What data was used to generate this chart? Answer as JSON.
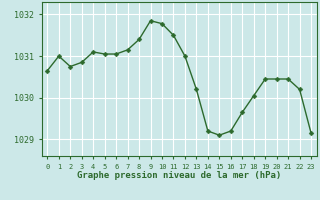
{
  "hours": [
    0,
    1,
    2,
    3,
    4,
    5,
    6,
    7,
    8,
    9,
    10,
    11,
    12,
    13,
    14,
    15,
    16,
    17,
    18,
    19,
    20,
    21,
    22,
    23
  ],
  "pressure": [
    1030.65,
    1031.0,
    1030.75,
    1030.85,
    1031.1,
    1031.05,
    1031.05,
    1031.15,
    1031.4,
    1031.85,
    1031.78,
    1031.5,
    1031.0,
    1030.2,
    1029.2,
    1029.1,
    1029.2,
    1029.65,
    1030.05,
    1030.45,
    1030.45,
    1030.45,
    1030.2,
    1029.15
  ],
  "line_color": "#2d6a2d",
  "marker": "D",
  "marker_size": 2.5,
  "bg_color": "#cce8e8",
  "grid_color": "#ffffff",
  "axis_color": "#2d6a2d",
  "tick_label_color": "#2d6a2d",
  "xlabel": "Graphe pression niveau de la mer (hPa)",
  "xlabel_color": "#2d6a2d",
  "ylim": [
    1028.6,
    1032.3
  ],
  "yticks": [
    1029,
    1030,
    1031,
    1032
  ],
  "xticks": [
    0,
    1,
    2,
    3,
    4,
    5,
    6,
    7,
    8,
    9,
    10,
    11,
    12,
    13,
    14,
    15,
    16,
    17,
    18,
    19,
    20,
    21,
    22,
    23
  ]
}
